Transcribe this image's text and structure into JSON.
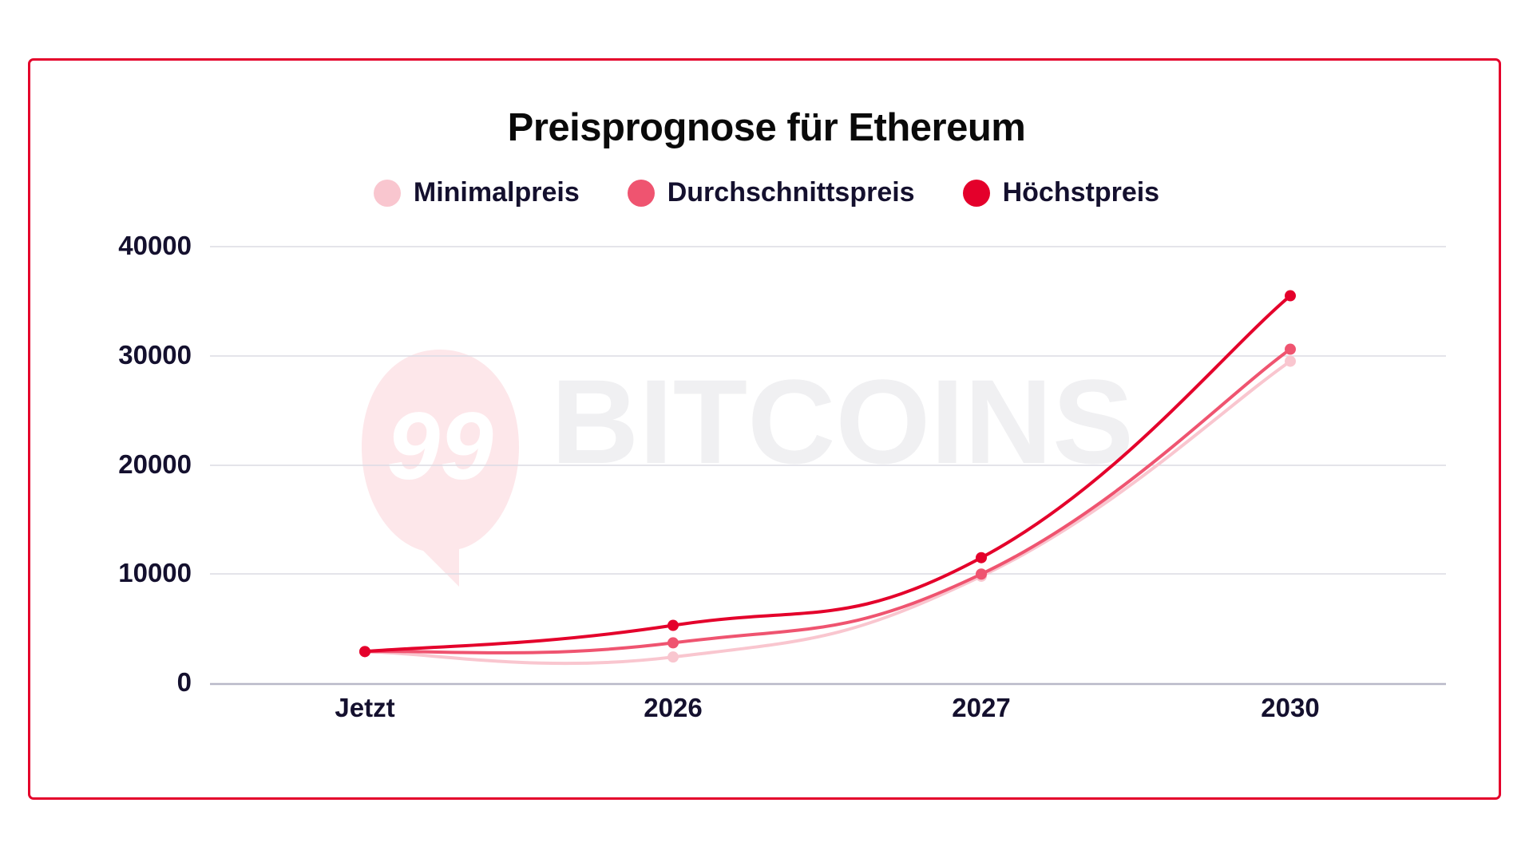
{
  "chart": {
    "title": "Preisprognose für Ethereum",
    "legend": [
      {
        "label": "Minimalpreis",
        "color": "#f9c6cf"
      },
      {
        "label": "Durchschnittspreis",
        "color": "#ef5470"
      },
      {
        "label": "Höchstpreis",
        "color": "#e4002b"
      }
    ],
    "y_ticks": [
      "40000",
      "30000",
      "20000",
      "10000",
      "0"
    ],
    "x_ticks": [
      "Jetzt",
      "2026",
      "2027",
      "2030"
    ],
    "watermark": "99 BITCOINS"
  },
  "chart_data": {
    "type": "line",
    "title": "Preisprognose für Ethereum",
    "xlabel": "",
    "ylabel": "",
    "categories": [
      "Jetzt",
      "2026",
      "2027",
      "2030"
    ],
    "series": [
      {
        "name": "Minimalpreis",
        "color": "#f9c6cf",
        "values": [
          2900,
          2400,
          9800,
          29500
        ]
      },
      {
        "name": "Durchschnittspreis",
        "color": "#ef5470",
        "values": [
          2900,
          3700,
          10000,
          30600
        ]
      },
      {
        "name": "Höchstpreis",
        "color": "#e4002b",
        "values": [
          2900,
          5300,
          11500,
          35500
        ]
      }
    ],
    "ylim": [
      0,
      40000
    ],
    "yticks": [
      0,
      10000,
      20000,
      30000,
      40000
    ],
    "grid": true,
    "legend_position": "top"
  }
}
